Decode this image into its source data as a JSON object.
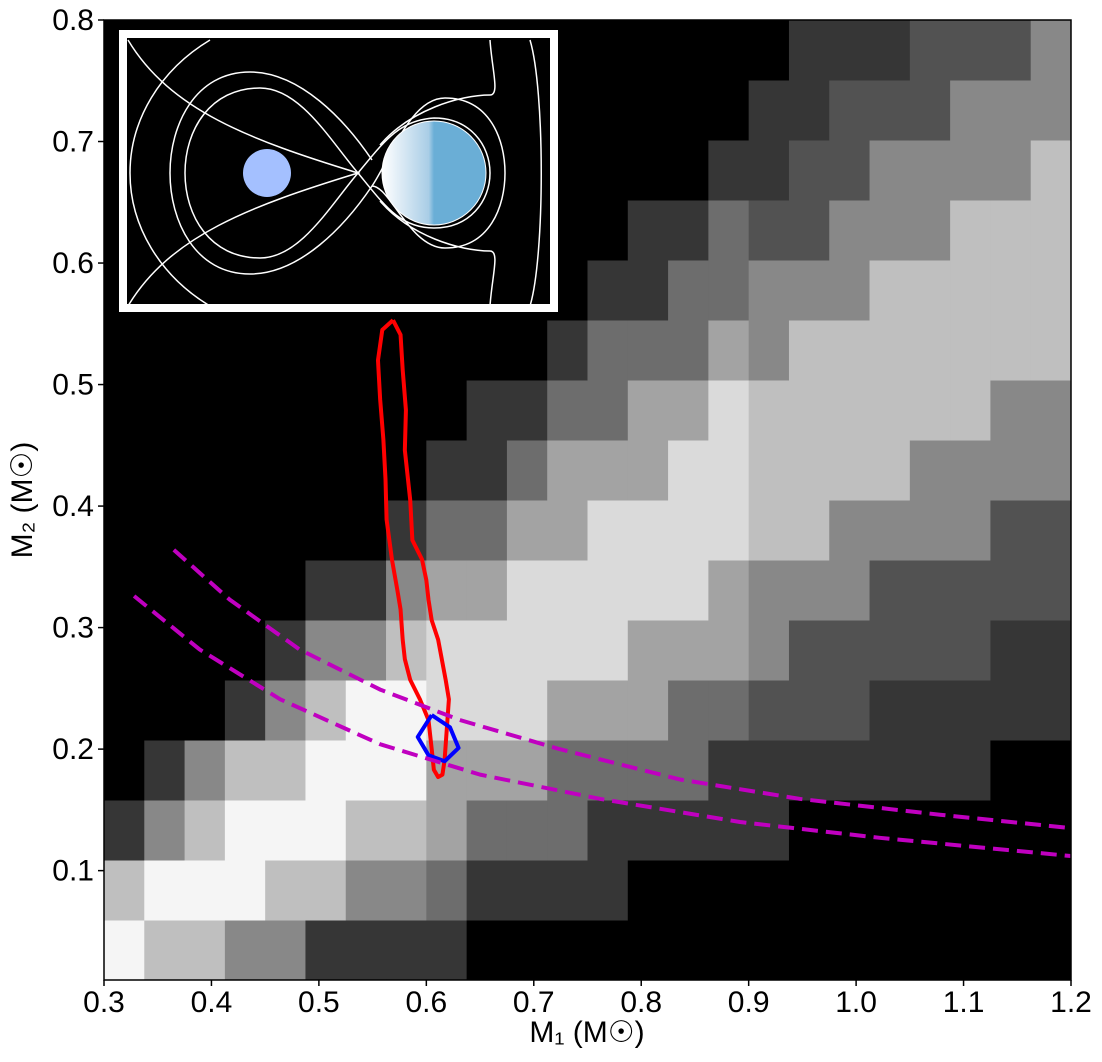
{
  "chart_data": {
    "type": "heatmap",
    "xlabel": "M₁ (M☉)",
    "ylabel": "M₂ (M☉)",
    "xlim": [
      0.3,
      1.2
    ],
    "ylim": [
      0.01,
      0.8
    ],
    "xticks": [
      0.3,
      0.4,
      0.5,
      0.6,
      0.7,
      0.8,
      0.9,
      {
        "value": 1,
        "label": "1.0"
      },
      1.1,
      {
        "value": 1.2,
        "label": "1.2"
      }
    ],
    "yticks": [
      0.1,
      0.2,
      0.3,
      0.4,
      0.5,
      0.6,
      0.7,
      0.8
    ],
    "zmax": 9,
    "z": [
      [
        9,
        7,
        7,
        5,
        5,
        2,
        2,
        2,
        2,
        0,
        0,
        0,
        0,
        0,
        0,
        0,
        0,
        0,
        0,
        0,
        0,
        0,
        0,
        0
      ],
      [
        7,
        9,
        9,
        9,
        7,
        7,
        5,
        5,
        4,
        2,
        2,
        2,
        2,
        0,
        0,
        0,
        0,
        0,
        0,
        0,
        0,
        0,
        0,
        0
      ],
      [
        2,
        5,
        7,
        9,
        9,
        9,
        7,
        7,
        6,
        4,
        4,
        4,
        2,
        2,
        2,
        2,
        2,
        0,
        0,
        0,
        0,
        0,
        0,
        0
      ],
      [
        0,
        2,
        5,
        7,
        7,
        9,
        9,
        9,
        6,
        6,
        6,
        4,
        4,
        4,
        4,
        2,
        2,
        2,
        2,
        2,
        2,
        2,
        0,
        0
      ],
      [
        0,
        0,
        0,
        2,
        5,
        7,
        9,
        9,
        8,
        8,
        8,
        6,
        6,
        6,
        4,
        4,
        3,
        3,
        3,
        2,
        2,
        2,
        2,
        2
      ],
      [
        0,
        0,
        0,
        0,
        2,
        5,
        5,
        7,
        8,
        8,
        8,
        8,
        8,
        6,
        6,
        6,
        5,
        3,
        3,
        3,
        3,
        3,
        2,
        2
      ],
      [
        0,
        0,
        0,
        0,
        0,
        2,
        2,
        5,
        6,
        6,
        8,
        8,
        8,
        8,
        8,
        6,
        5,
        5,
        5,
        3,
        3,
        3,
        3,
        3
      ],
      [
        0,
        0,
        0,
        0,
        0,
        0,
        0,
        2,
        4,
        4,
        6,
        6,
        8,
        8,
        8,
        8,
        7,
        7,
        5,
        5,
        5,
        5,
        3,
        3
      ],
      [
        0,
        0,
        0,
        0,
        0,
        0,
        0,
        0,
        2,
        2,
        4,
        6,
        6,
        6,
        8,
        8,
        7,
        7,
        7,
        7,
        5,
        5,
        5,
        5
      ],
      [
        0,
        0,
        0,
        0,
        0,
        0,
        0,
        0,
        0,
        2,
        2,
        4,
        4,
        6,
        6,
        8,
        7,
        7,
        7,
        7,
        7,
        7,
        5,
        5
      ],
      [
        0,
        0,
        0,
        0,
        0,
        0,
        0,
        0,
        0,
        0,
        0,
        2,
        4,
        4,
        4,
        6,
        5,
        7,
        7,
        7,
        7,
        7,
        7,
        7
      ],
      [
        0,
        0,
        0,
        0,
        0,
        0,
        0,
        0,
        0,
        0,
        0,
        0,
        2,
        2,
        4,
        4,
        5,
        5,
        5,
        7,
        7,
        7,
        7,
        7
      ],
      [
        0,
        0,
        0,
        0,
        0,
        0,
        0,
        0,
        0,
        0,
        0,
        0,
        0,
        2,
        2,
        4,
        3,
        3,
        5,
        5,
        5,
        7,
        7,
        7
      ],
      [
        0,
        0,
        0,
        0,
        0,
        0,
        0,
        0,
        0,
        0,
        0,
        0,
        0,
        0,
        0,
        2,
        2,
        3,
        3,
        5,
        5,
        5,
        5,
        7
      ],
      [
        0,
        0,
        0,
        0,
        0,
        0,
        0,
        0,
        0,
        0,
        0,
        0,
        0,
        0,
        0,
        0,
        2,
        2,
        3,
        3,
        3,
        5,
        5,
        5
      ],
      [
        0,
        0,
        0,
        0,
        0,
        0,
        0,
        0,
        0,
        0,
        0,
        0,
        0,
        0,
        0,
        0,
        0,
        2,
        2,
        2,
        3,
        3,
        3,
        5
      ]
    ],
    "series": [
      {
        "color": "#ff0000",
        "linestyle": "solid",
        "x": [
          0.569,
          0.576,
          0.578,
          0.581,
          0.58,
          0.585,
          0.587,
          0.596,
          0.6,
          0.602,
          0.605,
          0.611,
          0.618,
          0.621,
          0.619,
          0.617,
          0.615,
          0.611,
          0.607,
          0.605,
          0.602,
          0.594,
          0.585,
          0.58,
          0.578,
          0.576,
          0.573,
          0.568,
          0.563,
          0.562,
          0.56,
          0.557,
          0.555,
          0.559,
          0.569
        ],
        "y": [
          0.553,
          0.541,
          0.512,
          0.479,
          0.446,
          0.405,
          0.372,
          0.356,
          0.339,
          0.323,
          0.306,
          0.29,
          0.257,
          0.241,
          0.216,
          0.191,
          0.179,
          0.177,
          0.183,
          0.2,
          0.224,
          0.241,
          0.257,
          0.274,
          0.29,
          0.315,
          0.331,
          0.356,
          0.389,
          0.422,
          0.455,
          0.488,
          0.52,
          0.545,
          0.553
        ]
      },
      {
        "color": "#0000ff",
        "linestyle": "solid",
        "x": [
          0.605,
          0.622,
          0.63,
          0.617,
          0.602,
          0.592,
          0.605
        ],
        "y": [
          0.228,
          0.218,
          0.201,
          0.19,
          0.195,
          0.21,
          0.228
        ]
      },
      {
        "color": "#c000c0",
        "linestyle": "dashed",
        "x": [
          0.365,
          0.417,
          0.482,
          0.557,
          0.631,
          0.724,
          0.836,
          0.948,
          1.078,
          1.2
        ],
        "y": [
          0.364,
          0.323,
          0.282,
          0.249,
          0.224,
          0.2,
          0.175,
          0.159,
          0.146,
          0.135
        ]
      },
      {
        "color": "#c000c0",
        "linestyle": "dashed",
        "x": [
          0.328,
          0.389,
          0.464,
          0.557,
          0.65,
          0.762,
          0.892,
          1.022,
          1.2
        ],
        "y": [
          0.326,
          0.282,
          0.241,
          0.204,
          0.179,
          0.159,
          0.14,
          0.127,
          0.112
        ]
      }
    ]
  }
}
